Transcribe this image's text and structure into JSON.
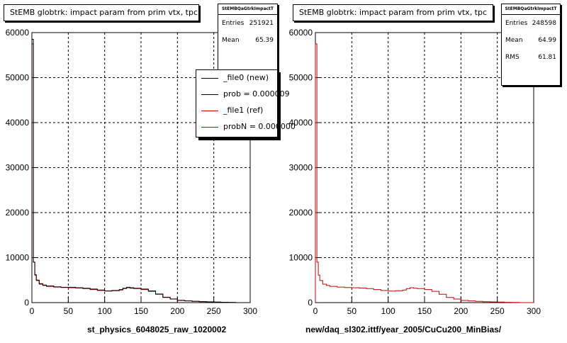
{
  "chart_data": [
    {
      "type": "line",
      "title": "StEMB globtrk: impact param from prim vtx, tpc",
      "xlabel": "st_physics_6048025_raw_1020002",
      "ylabel": "",
      "xlim": [
        0,
        300
      ],
      "ylim": [
        0,
        60000
      ],
      "xticks": [
        0,
        50,
        100,
        150,
        200,
        250,
        300
      ],
      "yticks": [
        0,
        10000,
        20000,
        30000,
        40000,
        50000,
        60000
      ],
      "grid": true,
      "legend": {
        "placement": "top-right"
      },
      "stats": {
        "title": "StEMBQaGtrkImpactT",
        "entries_label": "Entries",
        "entries": "251921",
        "mean_label": "Mean",
        "mean": "65.39"
      },
      "series": [
        {
          "name": "_file0 (new)",
          "color": "#000000",
          "x": [
            0,
            2,
            4,
            6,
            10,
            15,
            20,
            30,
            40,
            50,
            60,
            70,
            80,
            90,
            100,
            110,
            120,
            125,
            130,
            135,
            140,
            150,
            160,
            170,
            180,
            190,
            200,
            210,
            220,
            230,
            240,
            250,
            260,
            270,
            280,
            290,
            300
          ],
          "y": [
            58500,
            9000,
            6200,
            5000,
            4200,
            3900,
            3700,
            3500,
            3400,
            3400,
            3300,
            3200,
            3000,
            2800,
            2600,
            2700,
            2900,
            3200,
            3400,
            3300,
            3200,
            3000,
            2600,
            1900,
            1200,
            800,
            500,
            400,
            300,
            220,
            170,
            120,
            80,
            40,
            0,
            0,
            0
          ]
        },
        {
          "name": "prob = 0.000009",
          "color": "#000000"
        },
        {
          "name": "_file1 (ref)",
          "color": "#cc0000",
          "x": [
            0,
            2,
            4,
            6,
            10,
            15,
            20,
            30,
            40,
            50,
            60,
            70,
            80,
            90,
            100,
            110,
            120,
            125,
            130,
            135,
            140,
            150,
            160,
            170,
            180,
            190,
            200,
            210,
            220,
            230,
            240,
            250,
            260,
            270,
            280,
            290,
            300
          ],
          "y": [
            57500,
            9000,
            6100,
            4900,
            4100,
            3800,
            3600,
            3450,
            3350,
            3300,
            3250,
            3100,
            2900,
            2700,
            2550,
            2650,
            2800,
            3100,
            3300,
            3200,
            3100,
            2900,
            2500,
            1850,
            1150,
            780,
            480,
            380,
            280,
            200,
            150,
            110,
            70,
            30,
            0,
            0,
            0
          ]
        },
        {
          "name": "probN = 0.000000",
          "color": "#cc0000"
        }
      ]
    },
    {
      "type": "line",
      "title": "StEMB globtrk: impact param from prim vtx, tpc",
      "xlabel": "new/daq_sl302.ittf/year_2005/CuCu200_MinBias/",
      "ylabel": "",
      "xlim": [
        0,
        300
      ],
      "ylim": [
        0,
        60000
      ],
      "xticks": [
        0,
        50,
        100,
        150,
        200,
        250,
        300
      ],
      "yticks": [
        0,
        10000,
        20000,
        30000,
        40000,
        50000,
        60000
      ],
      "grid": true,
      "stats": {
        "title": "StEMBQaGtrkImpactT",
        "entries_label": "Entries",
        "entries": "248598",
        "mean_label": "Mean",
        "mean": "64.99",
        "rms_label": "RMS",
        "rms": "61.81"
      },
      "series": [
        {
          "color": "#cc0000",
          "x": [
            0,
            2,
            4,
            6,
            10,
            15,
            20,
            30,
            40,
            50,
            60,
            70,
            80,
            90,
            100,
            110,
            120,
            125,
            130,
            135,
            140,
            150,
            160,
            170,
            180,
            190,
            200,
            210,
            220,
            230,
            240,
            250,
            260,
            270,
            280,
            290,
            300
          ],
          "y": [
            57500,
            9000,
            6100,
            4900,
            4100,
            3800,
            3600,
            3450,
            3350,
            3300,
            3250,
            3100,
            2900,
            2700,
            2550,
            2650,
            2800,
            3100,
            3300,
            3200,
            3100,
            2900,
            2500,
            1850,
            1150,
            780,
            480,
            380,
            280,
            200,
            150,
            110,
            70,
            30,
            0,
            0,
            0
          ]
        }
      ]
    }
  ]
}
